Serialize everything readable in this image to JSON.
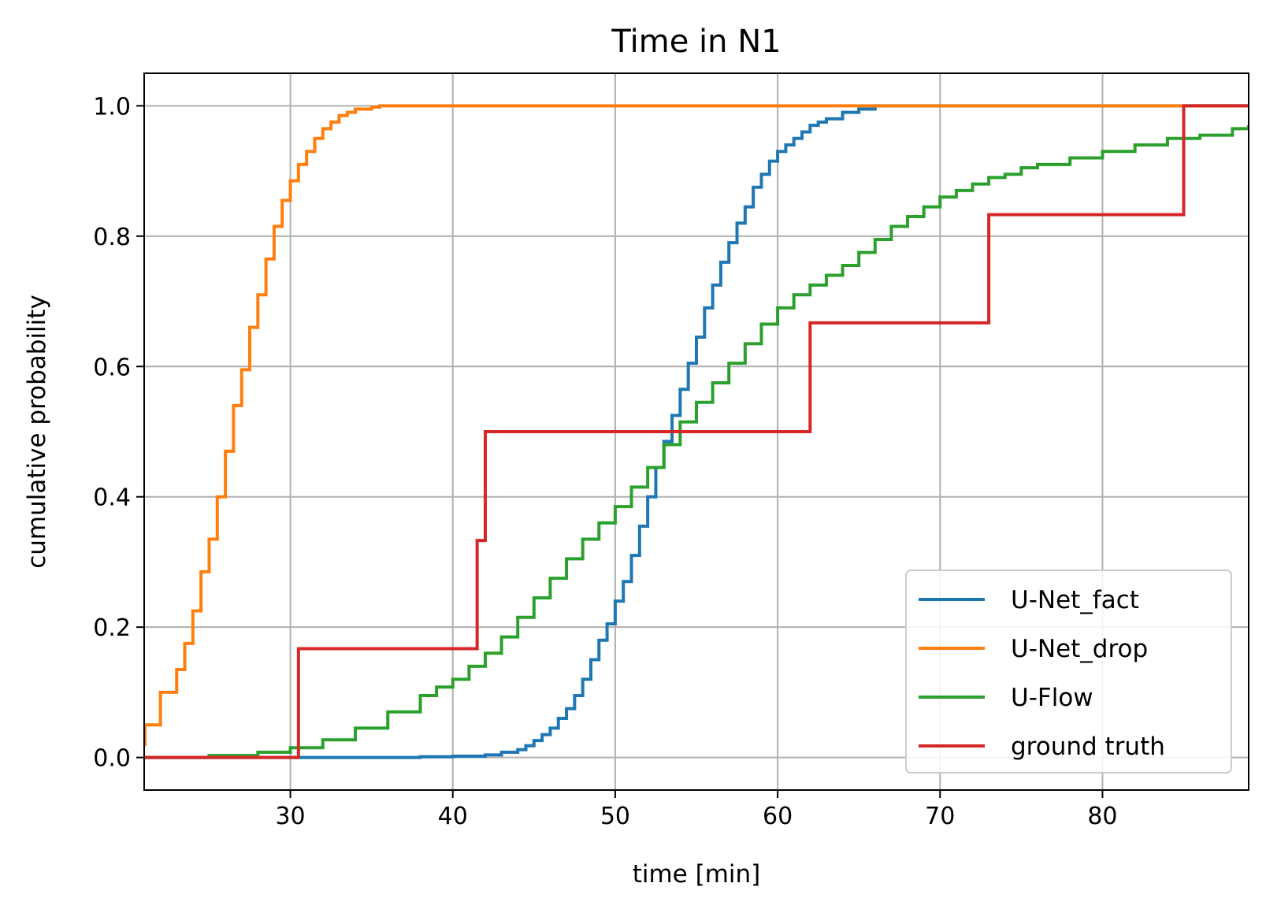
{
  "chart_data": {
    "type": "line",
    "title": "Time in N1",
    "xlabel": "time [min]",
    "ylabel": "cumulative probability",
    "xlim": [
      21,
      89
    ],
    "ylim": [
      -0.05,
      1.05
    ],
    "xticks": [
      30,
      40,
      50,
      60,
      70,
      80
    ],
    "yticks": [
      0.0,
      0.2,
      0.4,
      0.6,
      0.8,
      1.0
    ],
    "xtick_labels": [
      "30",
      "40",
      "50",
      "60",
      "70",
      "80"
    ],
    "ytick_labels": [
      "0.0",
      "0.2",
      "0.4",
      "0.6",
      "0.8",
      "1.0"
    ],
    "grid": true,
    "legend_position": "lower right",
    "step": "post",
    "series": [
      {
        "name": "U-Net_fact",
        "color": "#1f77b4",
        "x": [
          21,
          30,
          38,
          40,
          42,
          43,
          44,
          44.5,
          45,
          45.5,
          46,
          46.5,
          47,
          47.5,
          48,
          48.5,
          49,
          49.5,
          50,
          50.5,
          51,
          51.5,
          52,
          52.5,
          53,
          53.5,
          54,
          54.5,
          55,
          55.5,
          56,
          56.5,
          57,
          57.5,
          58,
          58.5,
          59,
          59.5,
          60,
          60.5,
          61,
          61.5,
          62,
          62.5,
          63,
          64,
          65,
          66,
          89
        ],
        "y": [
          0.0,
          0.0,
          0.001,
          0.002,
          0.004,
          0.008,
          0.012,
          0.018,
          0.026,
          0.035,
          0.045,
          0.06,
          0.075,
          0.095,
          0.12,
          0.15,
          0.18,
          0.205,
          0.24,
          0.27,
          0.31,
          0.355,
          0.4,
          0.445,
          0.485,
          0.525,
          0.565,
          0.605,
          0.645,
          0.69,
          0.725,
          0.76,
          0.79,
          0.82,
          0.845,
          0.875,
          0.895,
          0.915,
          0.93,
          0.94,
          0.95,
          0.96,
          0.97,
          0.975,
          0.98,
          0.99,
          0.995,
          1.0,
          1.0
        ]
      },
      {
        "name": "U-Net_drop",
        "color": "#ff7f0e",
        "x": [
          21,
          21.05,
          22,
          23,
          23.5,
          24,
          24.5,
          25,
          25.5,
          26,
          26.5,
          27,
          27.5,
          28,
          28.5,
          29,
          29.5,
          30,
          30.5,
          31,
          31.5,
          32,
          32.5,
          33,
          33.5,
          34,
          35,
          35.5,
          89
        ],
        "y": [
          0.02,
          0.05,
          0.1,
          0.135,
          0.175,
          0.225,
          0.285,
          0.335,
          0.4,
          0.47,
          0.54,
          0.595,
          0.66,
          0.71,
          0.765,
          0.815,
          0.855,
          0.885,
          0.91,
          0.93,
          0.95,
          0.965,
          0.975,
          0.985,
          0.99,
          0.995,
          0.998,
          1.0,
          1.0
        ]
      },
      {
        "name": "U-Flow",
        "color": "#2ca02c",
        "x": [
          21,
          25,
          28,
          30,
          32,
          34,
          36,
          38,
          39,
          40,
          41,
          42,
          43,
          44,
          45,
          46,
          47,
          48,
          49,
          50,
          51,
          52,
          53,
          54,
          55,
          56,
          57,
          58,
          59,
          60,
          61,
          62,
          63,
          64,
          65,
          66,
          67,
          68,
          69,
          70,
          71,
          72,
          73,
          74,
          75,
          76,
          78,
          80,
          82,
          84,
          86,
          88,
          89
        ],
        "y": [
          0.0,
          0.003,
          0.008,
          0.015,
          0.027,
          0.045,
          0.07,
          0.095,
          0.108,
          0.12,
          0.14,
          0.16,
          0.185,
          0.215,
          0.245,
          0.275,
          0.305,
          0.335,
          0.36,
          0.385,
          0.415,
          0.445,
          0.48,
          0.515,
          0.545,
          0.575,
          0.605,
          0.635,
          0.665,
          0.69,
          0.71,
          0.725,
          0.74,
          0.755,
          0.775,
          0.795,
          0.815,
          0.83,
          0.845,
          0.86,
          0.87,
          0.88,
          0.89,
          0.895,
          0.905,
          0.91,
          0.92,
          0.93,
          0.94,
          0.95,
          0.955,
          0.965,
          0.968
        ]
      },
      {
        "name": "ground truth",
        "color": "#d62728",
        "x": [
          21,
          30.5,
          41.5,
          42,
          62,
          73,
          85,
          89
        ],
        "y": [
          0.0,
          0.167,
          0.333,
          0.5,
          0.667,
          0.833,
          1.0,
          1.0
        ]
      }
    ]
  }
}
